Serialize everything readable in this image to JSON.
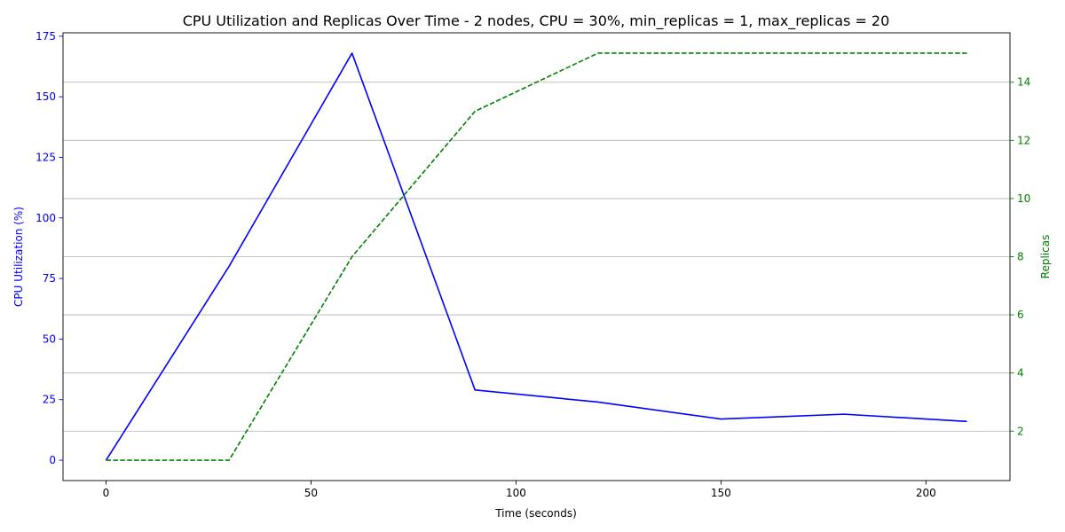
{
  "chart_data": {
    "type": "line",
    "title": "CPU Utilization and Replicas Over Time - 2 nodes, CPU = 30%, min_replicas = 1, max_replicas = 20",
    "xlabel": "Time (seconds)",
    "ylabel_left": "CPU Utilization (%)",
    "ylabel_right": "Replicas",
    "x": [
      0,
      30,
      60,
      90,
      120,
      150,
      180,
      210
    ],
    "xlim": [
      -10.5,
      220.5
    ],
    "ylim_left": [
      -8.4,
      176.4
    ],
    "ylim_right": [
      0.3,
      15.7
    ],
    "x_ticks": [
      0,
      50,
      100,
      150,
      200
    ],
    "y_ticks_left": [
      0,
      25,
      50,
      75,
      100,
      125,
      150,
      175
    ],
    "y_ticks_right": [
      2,
      4,
      6,
      8,
      10,
      12,
      14
    ],
    "grid": "horizontal, right axis",
    "series": [
      {
        "values": [
          0,
          80,
          168,
          29,
          24,
          17,
          19,
          16
        ],
        "color": "#0000ff",
        "style": "solid",
        "axis": "left"
      },
      {
        "values": [
          1,
          1,
          8,
          13,
          15,
          15,
          15,
          15
        ],
        "color": "#008000",
        "style": "dashed",
        "axis": "right"
      }
    ],
    "colors": {
      "left_axis": "#0000ff",
      "right_axis": "#008000",
      "grid": "#b0b0b0"
    }
  }
}
